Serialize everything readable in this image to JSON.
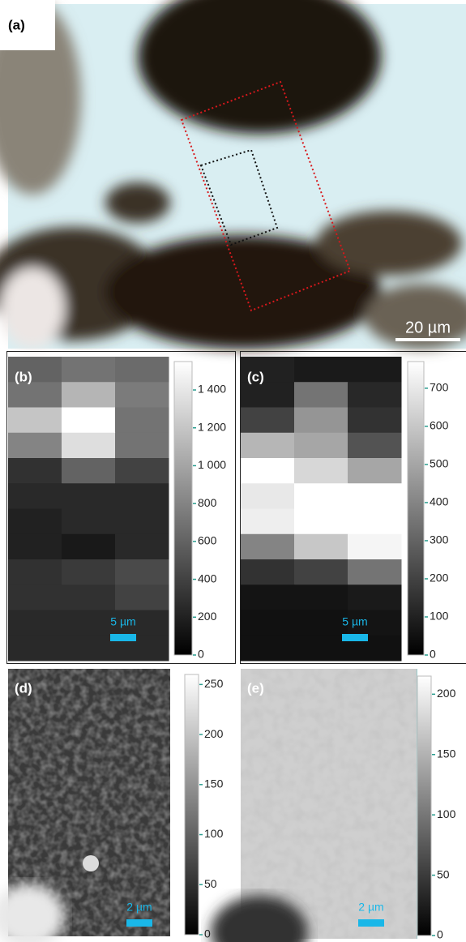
{
  "panels": [
    {
      "label": "(a)",
      "scale_bar": "20 µm"
    },
    {
      "label": "(b)",
      "scale_bar": "5 µm",
      "colorbar": {
        "min": 0,
        "max": 1550,
        "ticks": [
          0,
          200,
          400,
          600,
          800,
          {
            "value": 1000,
            "label": "1 000"
          },
          {
            "value": 1200,
            "label": "1 200"
          },
          {
            "value": 1400,
            "label": "1 400"
          }
        ]
      },
      "grid": [
        [
          600,
          700,
          650
        ],
        [
          700,
          1100,
          750
        ],
        [
          1200,
          1550,
          700
        ],
        [
          800,
          1350,
          700
        ],
        [
          300,
          600,
          400
        ],
        [
          250,
          250,
          250
        ],
        [
          200,
          250,
          250
        ],
        [
          200,
          150,
          250
        ],
        [
          300,
          350,
          450
        ],
        [
          300,
          300,
          400
        ],
        [
          250,
          250,
          250
        ],
        [
          250,
          250,
          250
        ]
      ]
    },
    {
      "label": "(c)",
      "scale_bar": "5 µm",
      "colorbar": {
        "min": 0,
        "max": 770,
        "ticks": [
          0,
          100,
          200,
          300,
          400,
          500,
          600,
          700
        ]
      },
      "grid": [
        [
          100,
          80,
          80
        ],
        [
          100,
          350,
          120
        ],
        [
          200,
          450,
          150
        ],
        [
          550,
          500,
          250
        ],
        [
          770,
          650,
          500
        ],
        [
          700,
          770,
          770
        ],
        [
          720,
          770,
          770
        ],
        [
          400,
          600,
          740
        ],
        [
          150,
          200,
          350
        ],
        [
          60,
          60,
          80
        ],
        [
          50,
          50,
          60
        ],
        [
          50,
          50,
          50
        ]
      ]
    },
    {
      "label": "(d)",
      "scale_bar": "2 µm",
      "colorbar": {
        "min": 0,
        "max": 260,
        "ticks": [
          0,
          50,
          100,
          150,
          200,
          250
        ]
      }
    },
    {
      "label": "(e)",
      "scale_bar": "2 µm",
      "colorbar": {
        "min": 0,
        "max": 215,
        "ticks": [
          0,
          50,
          100,
          150,
          200
        ]
      }
    }
  ]
}
